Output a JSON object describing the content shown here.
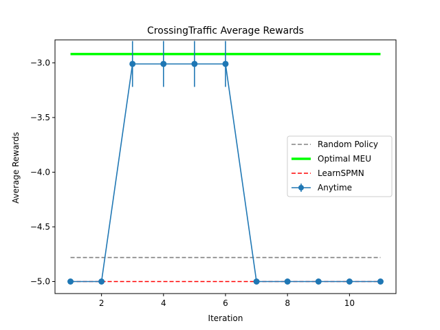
{
  "chart_data": {
    "type": "line",
    "title": "CrossingTraffic Average Rewards",
    "xlabel": "Iteration",
    "ylabel": "Average Rewards",
    "xlim": [
      0.5,
      11.5
    ],
    "ylim": [
      -5.11,
      -2.79
    ],
    "x_ticks": [
      2,
      4,
      6,
      8,
      10
    ],
    "x_tick_labels": [
      "2",
      "4",
      "6",
      "8",
      "10"
    ],
    "y_ticks": [
      -5.0,
      -4.5,
      -4.0,
      -3.5,
      -3.0
    ],
    "y_tick_labels": [
      "−5.0",
      "−4.5",
      "−4.0",
      "−3.5",
      "−3.0"
    ],
    "grid": false,
    "legend_position": "center-right",
    "series": [
      {
        "name": "Random Policy",
        "kind": "hline",
        "y": -4.78,
        "x_range": [
          1,
          11
        ],
        "color": "#808080",
        "style": "dashed"
      },
      {
        "name": "Optimal MEU",
        "kind": "hline",
        "y": -2.92,
        "x_range": [
          1,
          11
        ],
        "color": "#00ff00",
        "style": "solid-thick"
      },
      {
        "name": "LearnSPMN",
        "kind": "hline",
        "y": -5.0,
        "x_range": [
          1,
          11
        ],
        "color": "#ff0000",
        "style": "dashed"
      },
      {
        "name": "Anytime",
        "kind": "errorbar",
        "color": "#1f77b4",
        "x": [
          1,
          2,
          3,
          4,
          5,
          6,
          7,
          8,
          9,
          10,
          11
        ],
        "y": [
          -5.0,
          -5.0,
          -3.01,
          -3.01,
          -3.01,
          -3.01,
          -5.0,
          -5.0,
          -5.0,
          -5.0,
          -5.0
        ],
        "yerr": [
          0,
          0,
          0.21,
          0.21,
          0.21,
          0.21,
          0,
          0,
          0,
          0,
          0
        ]
      }
    ]
  }
}
